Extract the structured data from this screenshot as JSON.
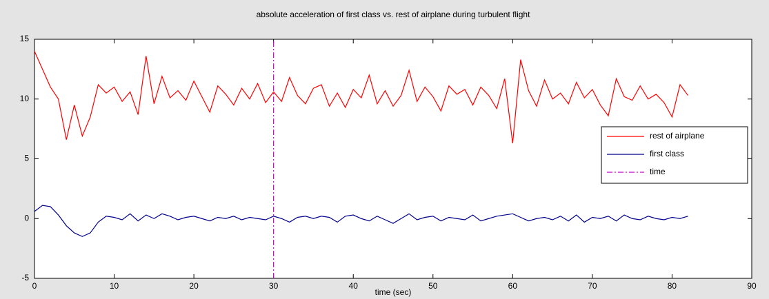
{
  "chart_data": {
    "type": "line",
    "title": "absolute acceleration of first class vs. rest of airplane during turbulent flight",
    "x_label": "time (sec)",
    "x": [
      0,
      1,
      2,
      3,
      4,
      5,
      6,
      7,
      8,
      9,
      10,
      11,
      12,
      13,
      14,
      15,
      16,
      17,
      18,
      19,
      20,
      21,
      22,
      23,
      24,
      25,
      26,
      27,
      28,
      29,
      30,
      31,
      32,
      33,
      34,
      35,
      36,
      37,
      38,
      39,
      40,
      41,
      42,
      43,
      44,
      45,
      46,
      47,
      48,
      49,
      50,
      51,
      52,
      53,
      54,
      55,
      56,
      57,
      58,
      59,
      60,
      61,
      62,
      63,
      64,
      65,
      66,
      67,
      68,
      69,
      70,
      71,
      72,
      73,
      74,
      75,
      76,
      77,
      78,
      79,
      80,
      81,
      82
    ],
    "series": [
      {
        "name": "rest of airplane",
        "color": "#ff0000",
        "dash": "solid",
        "values": [
          14.0,
          12.5,
          11.0,
          10.0,
          6.6,
          9.5,
          6.9,
          8.5,
          11.2,
          10.5,
          11.0,
          9.8,
          10.6,
          8.7,
          13.6,
          9.6,
          11.9,
          10.1,
          10.7,
          9.9,
          11.5,
          10.2,
          8.9,
          11.1,
          10.4,
          9.5,
          10.9,
          10.0,
          11.3,
          9.7,
          10.6,
          9.8,
          11.8,
          10.3,
          9.6,
          10.9,
          11.2,
          9.4,
          10.5,
          9.3,
          10.8,
          10.1,
          12.0,
          9.6,
          10.7,
          9.4,
          10.3,
          12.4,
          9.8,
          11.0,
          10.2,
          9.0,
          11.1,
          10.4,
          10.8,
          9.5,
          11.0,
          10.3,
          9.2,
          11.7,
          6.3,
          13.3,
          10.7,
          9.4,
          11.6,
          10.0,
          10.5,
          9.6,
          11.4,
          10.1,
          10.8,
          9.5,
          8.6,
          11.7,
          10.2,
          9.9,
          11.1,
          10.0,
          10.4,
          9.7,
          8.5,
          11.2,
          10.3
        ]
      },
      {
        "name": "first class",
        "color": "#00008b",
        "dash": "solid",
        "values": [
          0.6,
          1.1,
          1.0,
          0.3,
          -0.6,
          -1.2,
          -1.5,
          -1.2,
          -0.3,
          0.2,
          0.1,
          -0.1,
          0.4,
          -0.2,
          0.3,
          0.0,
          0.4,
          0.2,
          -0.1,
          0.1,
          0.2,
          0.0,
          -0.2,
          0.1,
          0.0,
          0.2,
          -0.1,
          0.1,
          0.0,
          -0.1,
          0.2,
          0.0,
          -0.3,
          0.1,
          0.2,
          0.0,
          0.2,
          0.1,
          -0.3,
          0.2,
          0.3,
          0.0,
          -0.2,
          0.2,
          -0.1,
          -0.4,
          0.0,
          0.4,
          -0.1,
          0.1,
          0.2,
          -0.2,
          0.1,
          0.0,
          -0.1,
          0.3,
          -0.2,
          0.0,
          0.2,
          0.3,
          0.4,
          0.1,
          -0.2,
          0.0,
          0.1,
          -0.1,
          0.2,
          -0.2,
          0.3,
          -0.3,
          0.1,
          0.0,
          0.2,
          -0.2,
          0.3,
          0.0,
          -0.1,
          0.2,
          0.0,
          -0.1,
          0.1,
          0.0,
          0.2
        ]
      },
      {
        "name": "time",
        "color": "#cc00cc",
        "dash": "dash-dot",
        "x": [
          30,
          30
        ],
        "values": [
          -5,
          15
        ]
      }
    ],
    "xlim": [
      0,
      90
    ],
    "xticks": [
      0,
      10,
      20,
      30,
      40,
      50,
      60,
      70,
      80,
      90
    ],
    "ylim": [
      -5,
      15
    ],
    "yticks": [
      -5,
      0,
      5,
      10,
      15
    ],
    "grid": false,
    "legend": "right"
  }
}
